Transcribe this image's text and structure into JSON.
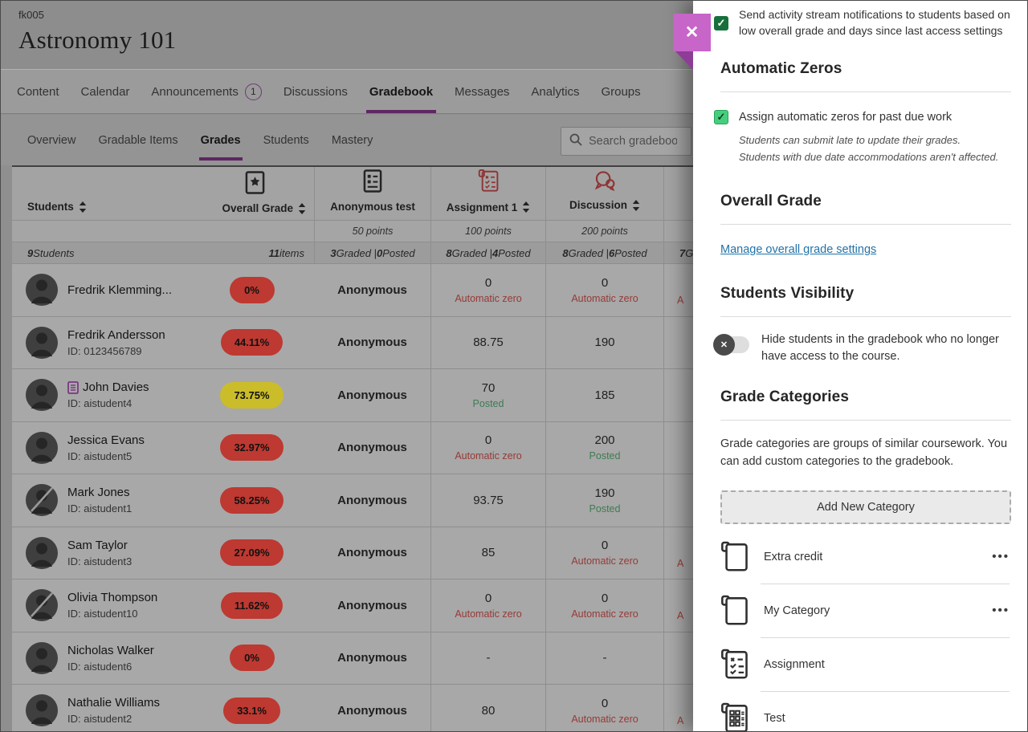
{
  "course": {
    "code": "fk005",
    "title": "Astronomy 101"
  },
  "nav": {
    "tabs": [
      {
        "label": "Content",
        "active": false
      },
      {
        "label": "Calendar",
        "active": false
      },
      {
        "label": "Announcements",
        "active": false,
        "badge": "1"
      },
      {
        "label": "Discussions",
        "active": false
      },
      {
        "label": "Gradebook",
        "active": true
      },
      {
        "label": "Messages",
        "active": false
      },
      {
        "label": "Analytics",
        "active": false
      },
      {
        "label": "Groups",
        "active": false
      }
    ]
  },
  "subnav": {
    "tabs": [
      {
        "label": "Overview",
        "active": false
      },
      {
        "label": "Gradable Items",
        "active": false
      },
      {
        "label": "Grades",
        "active": true
      },
      {
        "label": "Students",
        "active": false
      },
      {
        "label": "Mastery",
        "active": false
      }
    ],
    "search_placeholder": "Search gradebook"
  },
  "gradebook": {
    "students_header": "Students",
    "students_count": "9 Students",
    "clipped_counts": "7 G",
    "columns": [
      {
        "label": "Overall Grade",
        "icon": "medal-icon",
        "sortable": true,
        "points": "",
        "counts": "11 items"
      },
      {
        "label": "Anonymous test",
        "icon": "form-icon",
        "sortable": false,
        "points": "50 points",
        "counts": "3 Graded | 0 Posted"
      },
      {
        "label": "Assignment 1",
        "icon": "assignment-icon",
        "sortable": true,
        "points": "100 points",
        "counts": "8 Graded | 4 Posted"
      },
      {
        "label": "Discussion",
        "icon": "discussion-icon",
        "sortable": true,
        "points": "200 points",
        "counts": "8 Graded | 6 Posted"
      }
    ],
    "rows": [
      {
        "name": "Fredrik Klemming...",
        "id": "",
        "accommodations": false,
        "avatar": "normal",
        "grade": "0%",
        "grade_color": "red",
        "anonymous": "Anonymous",
        "assignment1": {
          "value": "0",
          "sub": "Automatic zero"
        },
        "discussion": {
          "value": "0",
          "sub": "Automatic zero"
        },
        "clipped": "A"
      },
      {
        "name": "Fredrik Andersson",
        "id": "ID: 0123456789",
        "accommodations": false,
        "avatar": "normal",
        "grade": "44.11%",
        "grade_color": "red",
        "anonymous": "Anonymous",
        "assignment1": {
          "value": "88.75",
          "sub": ""
        },
        "discussion": {
          "value": "190",
          "sub": ""
        },
        "clipped": ""
      },
      {
        "name": "John Davies",
        "id": "ID: aistudent4",
        "accommodations": true,
        "avatar": "normal",
        "grade": "73.75%",
        "grade_color": "yellow",
        "anonymous": "Anonymous",
        "assignment1": {
          "value": "70",
          "sub": "Posted"
        },
        "discussion": {
          "value": "185",
          "sub": ""
        },
        "clipped": ""
      },
      {
        "name": "Jessica Evans",
        "id": "ID: aistudent5",
        "accommodations": false,
        "avatar": "normal",
        "grade": "32.97%",
        "grade_color": "red",
        "anonymous": "Anonymous",
        "assignment1": {
          "value": "0",
          "sub": "Automatic zero"
        },
        "discussion": {
          "value": "200",
          "sub": "Posted"
        },
        "clipped": ""
      },
      {
        "name": "Mark Jones",
        "id": "ID: aistudent1",
        "accommodations": false,
        "avatar": "unavailable",
        "grade": "58.25%",
        "grade_color": "red",
        "anonymous": "Anonymous",
        "assignment1": {
          "value": "93.75",
          "sub": ""
        },
        "discussion": {
          "value": "190",
          "sub": "Posted"
        },
        "clipped": ""
      },
      {
        "name": "Sam Taylor",
        "id": "ID: aistudent3",
        "accommodations": false,
        "avatar": "normal",
        "grade": "27.09%",
        "grade_color": "red",
        "anonymous": "Anonymous",
        "assignment1": {
          "value": "85",
          "sub": ""
        },
        "discussion": {
          "value": "0",
          "sub": "Automatic zero"
        },
        "clipped": "A"
      },
      {
        "name": "Olivia Thompson",
        "id": "ID: aistudent10",
        "accommodations": false,
        "avatar": "unavailable",
        "grade": "11.62%",
        "grade_color": "red",
        "anonymous": "Anonymous",
        "assignment1": {
          "value": "0",
          "sub": "Automatic zero"
        },
        "discussion": {
          "value": "0",
          "sub": "Automatic zero"
        },
        "clipped": "A"
      },
      {
        "name": "Nicholas Walker",
        "id": "ID: aistudent6",
        "accommodations": false,
        "avatar": "normal",
        "grade": "0%",
        "grade_color": "red",
        "anonymous": "Anonymous",
        "assignment1": {
          "value": "-",
          "sub": ""
        },
        "discussion": {
          "value": "-",
          "sub": ""
        },
        "clipped": ""
      },
      {
        "name": "Nathalie Williams",
        "id": "ID: aistudent2",
        "accommodations": false,
        "avatar": "normal",
        "grade": "33.1%",
        "grade_color": "red",
        "anonymous": "Anonymous",
        "assignment1": {
          "value": "80",
          "sub": ""
        },
        "discussion": {
          "value": "0",
          "sub": "Automatic zero"
        },
        "clipped": "A"
      }
    ]
  },
  "panel": {
    "stream_notice": "Send activity stream notifications to students based on low overall grade and days since last access settings",
    "automatic_zeros": {
      "heading": "Automatic Zeros",
      "checkbox_label": "Assign automatic zeros for past due work",
      "note1": "Students can submit late to update their grades.",
      "note2": "Students with due date accommodations aren't affected."
    },
    "overall_grade": {
      "heading": "Overall Grade",
      "link_label": "Manage overall grade settings"
    },
    "students_visibility": {
      "heading": "Students Visibility",
      "toggle_label": "Hide students in the gradebook who no longer have access to the course.",
      "toggle_state": "off"
    },
    "grade_categories": {
      "heading": "Grade Categories",
      "description": "Grade categories are groups of similar coursework. You can add custom categories to the gradebook.",
      "add_button_label": "Add New Category",
      "items": [
        {
          "label": "Extra credit",
          "icon": "custom-category-icon",
          "has_menu": true
        },
        {
          "label": "My Category",
          "icon": "custom-category-icon",
          "has_menu": true
        },
        {
          "label": "Assignment",
          "icon": "assignment-category-icon",
          "has_menu": false
        },
        {
          "label": "Test",
          "icon": "test-category-icon",
          "has_menu": false
        }
      ]
    }
  },
  "colors": {
    "accent_purple": "#5e2663",
    "pill_red": "#bd3931",
    "pill_yellow": "#cbbd2a",
    "posted_green": "#3e7b51",
    "auto_zero_red": "#963a37",
    "link_blue": "#2273a8",
    "checkbox_dark_green": "#17703c",
    "checkbox_light_green": "#45cf7d",
    "close_magenta": "#c765c9"
  }
}
